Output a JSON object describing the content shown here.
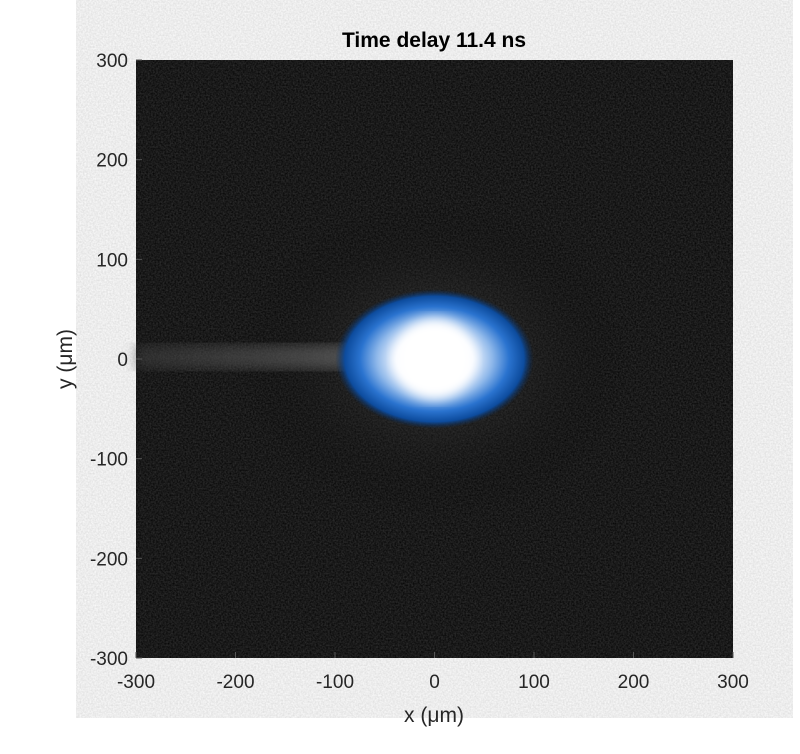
{
  "chart_data": {
    "type": "heatmap",
    "title": "Time delay 11.4 ns",
    "xlabel": "x (μm)",
    "ylabel": "y (μm)",
    "xlim": [
      -300,
      300
    ],
    "ylim": [
      -300,
      300
    ],
    "xticks": [
      -300,
      -200,
      -100,
      0,
      100,
      200,
      300
    ],
    "yticks": [
      300,
      200,
      100,
      0,
      -100,
      -200,
      -300
    ],
    "xtick_labels": [
      "-300",
      "-200",
      "-100",
      "0",
      "100",
      "200",
      "300"
    ],
    "ytick_labels": [
      "300",
      "200",
      "100",
      "0",
      "-100",
      "-200",
      "-300"
    ],
    "grid": false,
    "colormap": [
      "#000000",
      "#0a3f8a",
      "#1f6fd0",
      "#9cc4f0",
      "#ffffff"
    ],
    "spot": {
      "center": [
        0,
        0
      ],
      "core_radius": 40,
      "halo_radius_x": 100,
      "halo_radius_y": 70
    },
    "streak": {
      "y": 0,
      "from_x": -300,
      "to_x": -80
    }
  }
}
